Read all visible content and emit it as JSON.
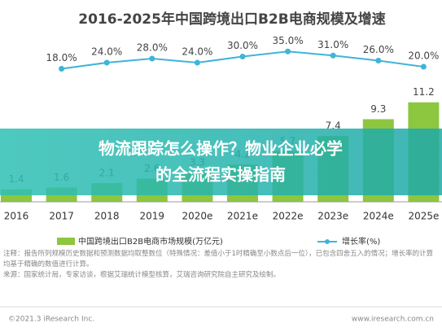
{
  "chart_data": {
    "type": "bar",
    "title": "2016-2025年中国跨境出口B2B电商规模及增速",
    "categories": [
      "2016",
      "2017",
      "2018",
      "2019",
      "2020e",
      "2021e",
      "2022e",
      "2023e",
      "2024e",
      "2025e"
    ],
    "series": [
      {
        "name": "中国跨境出口B2B电商市场规模(万亿元)",
        "type": "bar",
        "color": "#8dc63f",
        "values": [
          1.4,
          1.6,
          2.1,
          2.6,
          3.3,
          4.2,
          5.7,
          7.4,
          9.3,
          11.2
        ]
      },
      {
        "name": "增长率(%)",
        "type": "line",
        "axis": "y2",
        "color": "#3fb4d8",
        "values": [
          null,
          18.0,
          24.0,
          28.0,
          24.0,
          30.0,
          35.0,
          31.0,
          26.0,
          20.0
        ],
        "value_labels": [
          null,
          "18.0%",
          "24.0%",
          "28.0%",
          "24.0%",
          "30.0%",
          "35.0%",
          "31.0%",
          "26.0%",
          "20.0%"
        ]
      }
    ],
    "ylim": [
      0,
      12
    ],
    "y2lim": [
      0,
      40
    ],
    "notes": [
      "注释：报告所列规模历史数据和预测数据均取整数位（特殊情况：差值小于1时精确至小数点后一位），已包含四舍五入的情况；增长率的计算均基于精确的数值进行计算。",
      "来源：国家统计局，专家访谈，根据艾瑞统计模型核算，艾瑞咨询研究院自主研究及绘制。"
    ],
    "footer_left": "©2021.3 iResearch Inc.",
    "footer_right": "www.iresearch.com.cn"
  },
  "banner": {
    "lines": [
      "物流跟踪怎么操作？物业企业必学",
      "的全流程实操指南"
    ]
  }
}
